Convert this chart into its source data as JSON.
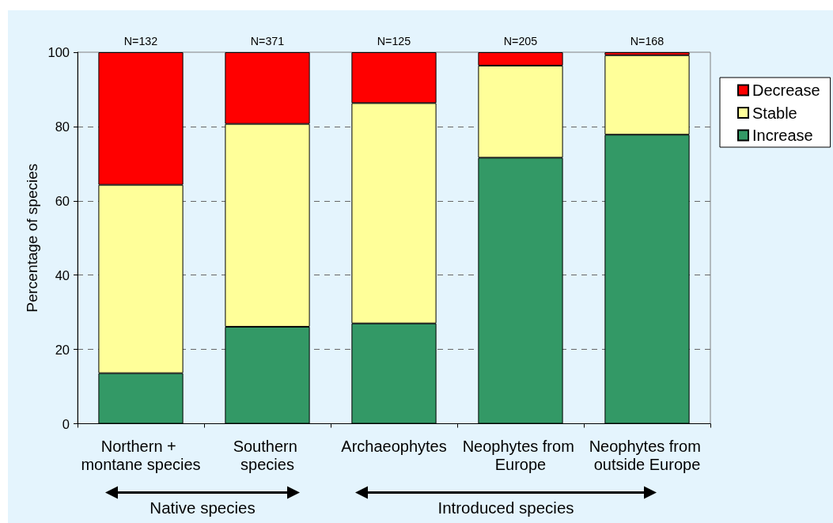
{
  "chart_data": {
    "type": "bar",
    "stacked": true,
    "ylabel": "Percentage of species",
    "categories": [
      "Northern + montane species",
      "Southern species",
      "Archaeophytes",
      "Neophytes from Europe",
      "Neophytes from outside Europe"
    ],
    "series": [
      {
        "name": "Increase",
        "color": "#339966",
        "values": [
          13.6,
          26.1,
          27.0,
          71.6,
          77.8
        ]
      },
      {
        "name": "Stable",
        "color": "#ffff99",
        "values": [
          50.7,
          54.6,
          59.3,
          24.8,
          21.4
        ]
      },
      {
        "name": "Decrease",
        "color": "#ff0000",
        "values": [
          35.7,
          19.3,
          13.7,
          3.6,
          0.8
        ]
      }
    ],
    "ylim": [
      0,
      100
    ],
    "yticks": [
      0,
      20,
      40,
      60,
      80,
      100
    ],
    "grid": "y",
    "legend": "right",
    "annotations": [
      {
        "text": "N=132",
        "x": "Northern + montane species",
        "y": 100
      },
      {
        "text": "N=371",
        "x": "Southern species",
        "y": 100
      },
      {
        "text": "N=125",
        "x": "Archaeophytes",
        "y": 100
      },
      {
        "text": "N=205",
        "x": "Neophytes from Europe",
        "y": 100
      },
      {
        "text": "N=168",
        "x": "Neophytes from outside Europe",
        "y": 100
      },
      "Native species",
      "Introduced species"
    ]
  }
}
